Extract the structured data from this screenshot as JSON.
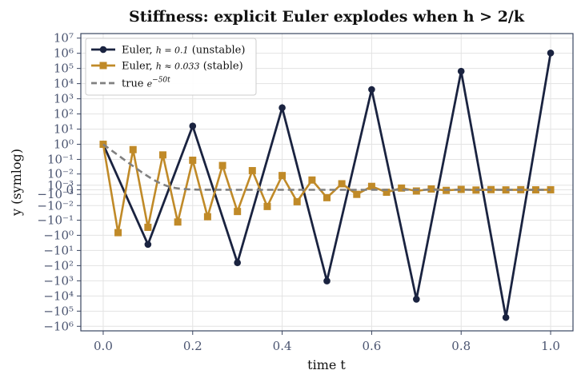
{
  "chart_data": {
    "type": "line",
    "title": "Stiffness: explicit Euler explodes when h > 2/k",
    "xlabel": "time  t",
    "ylabel": "y  (symlog)",
    "xlim": [
      -0.05,
      1.05
    ],
    "x_ticks": [
      0.0,
      0.2,
      0.4,
      0.6,
      0.8,
      1.0
    ],
    "x_tick_labels": [
      "0.0",
      "0.2",
      "0.4",
      "0.6",
      "0.8",
      "1.0"
    ],
    "y_scale": "symlog",
    "y_linthresh": 0.001,
    "y_tick_labels": [
      "10⁷",
      "10⁶",
      "10⁵",
      "10⁴",
      "10³",
      "10²",
      "10¹",
      "10⁰",
      "10⁻¹",
      "10⁻²",
      "10⁻³",
      "0",
      "−10⁻³",
      "−10⁻²",
      "−10⁻¹",
      "−10⁰",
      "−10¹",
      "−10²",
      "−10³",
      "−10⁴",
      "−10⁵",
      "−10⁶"
    ],
    "y_tick_values": [
      10000000,
      1000000,
      100000,
      10000,
      1000,
      100,
      10,
      1,
      0.1,
      0.01,
      0.001,
      0,
      -0.001,
      -0.01,
      -0.1,
      -1,
      -10,
      -100,
      -1000,
      -10000,
      -100000,
      -1000000
    ],
    "grid": true,
    "legend_position": "top-left",
    "series": [
      {
        "name": "Euler, h = 0.1 (unstable)",
        "color": "#1a2340",
        "marker": "circle",
        "x": [
          0.0,
          0.1,
          0.2,
          0.3,
          0.4,
          0.5,
          0.6,
          0.7,
          0.8,
          0.9,
          1.0
        ],
        "y": [
          1,
          -4,
          16,
          -64,
          256,
          -1024,
          4096,
          -16384,
          65536,
          -262144,
          1048576
        ]
      },
      {
        "name": "Euler, h ≈ 0.033 (stable)",
        "color": "#c08a28",
        "marker": "square",
        "x": [
          0.0,
          0.0333,
          0.0667,
          0.1,
          0.1333,
          0.1667,
          0.2,
          0.2333,
          0.2667,
          0.3,
          0.3333,
          0.3667,
          0.4,
          0.4333,
          0.4667,
          0.5,
          0.5333,
          0.5667,
          0.6,
          0.6333,
          0.6667,
          0.7,
          0.7333,
          0.7667,
          0.8,
          0.8333,
          0.8667,
          0.9,
          0.9333,
          0.9667,
          1.0
        ],
        "y": [
          1,
          -0.667,
          0.444,
          -0.296,
          0.198,
          -0.132,
          0.0878,
          -0.0585,
          0.039,
          -0.026,
          0.0173,
          -0.0116,
          0.0077,
          -0.0051,
          0.0034,
          -0.0023,
          0.0015,
          -0.001,
          0.00068,
          -0.00045,
          0.0003,
          -0.0002,
          0.00013,
          -9e-05,
          6e-05,
          -4e-05,
          2.6e-05,
          -1.8e-05,
          1.2e-05,
          -8e-06,
          5.2e-06
        ]
      },
      {
        "name": "true e^{−50t}",
        "color": "#808080",
        "dashed": true,
        "function": "exp(-50t)"
      }
    ],
    "legend": {
      "entries": [
        {
          "prefix": "Euler, ",
          "math": "h = 0.1",
          "suffix": " (unstable)"
        },
        {
          "prefix": "Euler, ",
          "math": "h ≈ 0.033",
          "suffix": " (stable)"
        },
        {
          "prefix": "true ",
          "math": "e",
          "sup": "−50t",
          "suffix": ""
        }
      ]
    }
  }
}
